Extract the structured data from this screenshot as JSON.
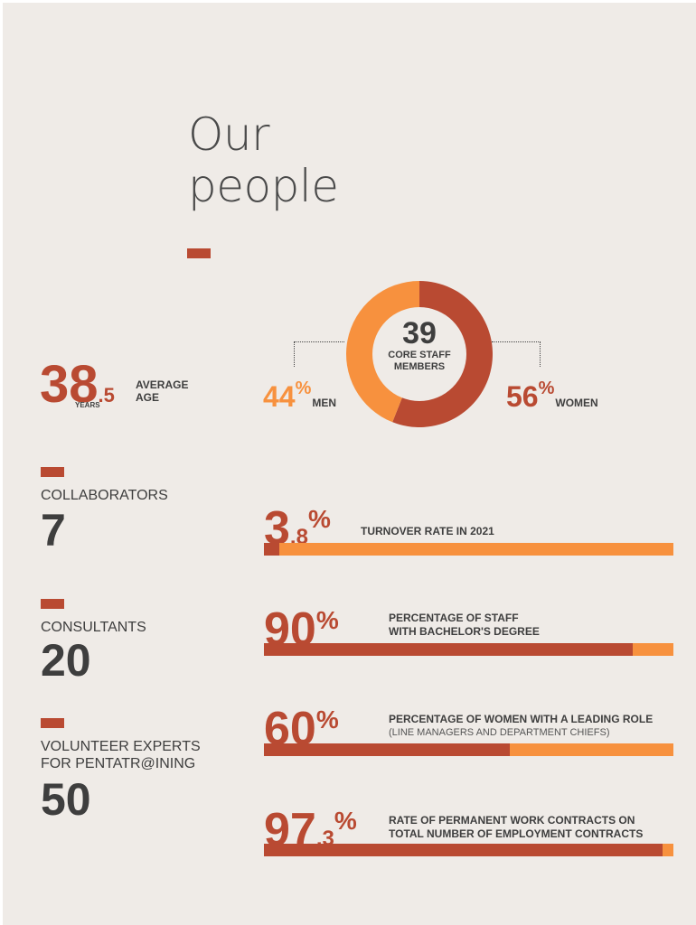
{
  "title": {
    "line1": "Our",
    "line2": "people"
  },
  "colors": {
    "accent": "#b94a32",
    "secondary": "#f7913e",
    "background": "#efebe7",
    "text": "#3e3e3e"
  },
  "age": {
    "integer": "38",
    "decimal": ".5",
    "unit": "YEARS",
    "label_line1": "AVERAGE",
    "label_line2": "AGE"
  },
  "staff": {
    "count": "39",
    "label_line1": "CORE STAFF",
    "label_line2": "MEMBERS"
  },
  "men": {
    "value": "44",
    "pct": "%",
    "label": "MEN"
  },
  "women": {
    "value": "56",
    "pct": "%",
    "label": "WOMEN"
  },
  "categories": [
    {
      "label_line1": "COLLABORATORS",
      "label_line2": "",
      "value": "7"
    },
    {
      "label_line1": "CONSULTANTS",
      "label_line2": "",
      "value": "20"
    },
    {
      "label_line1": "VOLUNTEER EXPERTS",
      "label_line2": "FOR PENTATR@INING",
      "value": "50"
    }
  ],
  "stats": [
    {
      "integer": "3",
      "decimal": ".8",
      "pct": "%",
      "label_line1": "TURNOVER RATE IN 2021",
      "label_line2": "",
      "sub": ""
    },
    {
      "integer": "90",
      "decimal": "",
      "pct": "%",
      "label_line1": "PERCENTAGE OF STAFF",
      "label_line2": "WITH BACHELOR'S DEGREE",
      "sub": ""
    },
    {
      "integer": "60",
      "decimal": "",
      "pct": "%",
      "label_line1": "PERCENTAGE OF WOMEN WITH A LEADING ROLE",
      "label_line2": "",
      "sub": "(LINE MANAGERS AND DEPARTMENT CHIEFS)"
    },
    {
      "integer": "97",
      "decimal": ".3",
      "pct": "%",
      "label_line1": "RATE OF PERMANENT WORK CONTRACTS ON",
      "label_line2": "TOTAL NUMBER OF EMPLOYMENT CONTRACTS",
      "sub": ""
    }
  ],
  "chart_data": [
    {
      "type": "pie",
      "categories": [
        "MEN",
        "WOMEN"
      ],
      "values": [
        44,
        56
      ],
      "colors": [
        "#f7913e",
        "#b94a32"
      ],
      "center_label": "39 CORE STAFF MEMBERS"
    },
    {
      "type": "bar",
      "orientation": "horizontal",
      "categories": [
        "TURNOVER RATE IN 2021",
        "PERCENTAGE OF STAFF WITH BACHELOR'S DEGREE",
        "PERCENTAGE OF WOMEN WITH A LEADING ROLE",
        "RATE OF PERMANENT WORK CONTRACTS ON TOTAL NUMBER OF EMPLOYMENT CONTRACTS"
      ],
      "values": [
        3.8,
        90,
        60,
        97.3
      ],
      "xlim": [
        0,
        100
      ]
    }
  ]
}
